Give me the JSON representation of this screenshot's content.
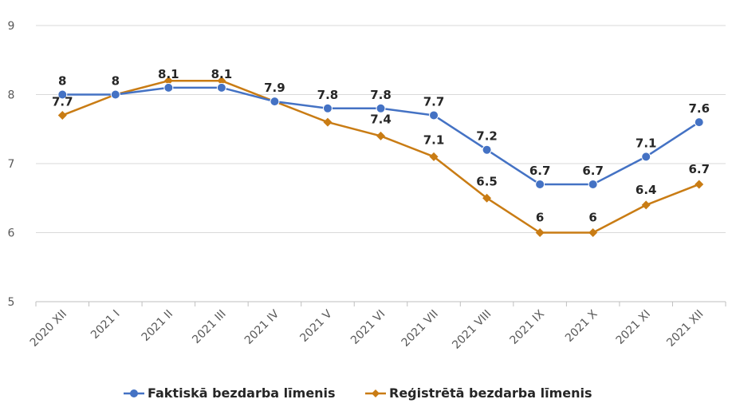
{
  "chart_data": {
    "type": "line",
    "title": "",
    "xlabel": "",
    "ylabel": "",
    "categories": [
      "2020 XII",
      "2021 I",
      "2021 II",
      "2021 III",
      "2021 IV",
      "2021 V",
      "2021 VI",
      "2021 VII",
      "2021 VIII",
      "2021 IX",
      "2021 X",
      "2021 XI",
      "2021 XII"
    ],
    "ylim": [
      5,
      9
    ],
    "yticks": [
      "5",
      "6",
      "7",
      "8",
      "9"
    ],
    "grid": true,
    "legend_position": "bottom",
    "series": [
      {
        "name": "Faktiskā bezdarba līmenis",
        "color": "#4472C4",
        "marker": "circle",
        "values": [
          8,
          8,
          8.1,
          8.1,
          7.9,
          7.8,
          7.8,
          7.7,
          7.2,
          6.7,
          6.7,
          7.1,
          7.6
        ],
        "labels": [
          "8",
          "8",
          "8.1",
          "8.1",
          "7.9",
          "7.8",
          "7.8",
          "7.7",
          "7.2",
          "6.7",
          "6.7",
          "7.1",
          "7.6"
        ]
      },
      {
        "name": "Reģistrētā bezdarba līmenis",
        "color": "#C97C14",
        "marker": "diamond",
        "values": [
          7.7,
          8,
          8.2,
          8.2,
          7.9,
          7.6,
          7.4,
          7.1,
          6.5,
          6,
          6,
          6.4,
          6.7
        ],
        "labels": [
          "7.7",
          "",
          "",
          "",
          "",
          "",
          "7.4",
          "7.1",
          "6.5",
          "6",
          "6",
          "6.4",
          "6.7"
        ]
      }
    ]
  }
}
